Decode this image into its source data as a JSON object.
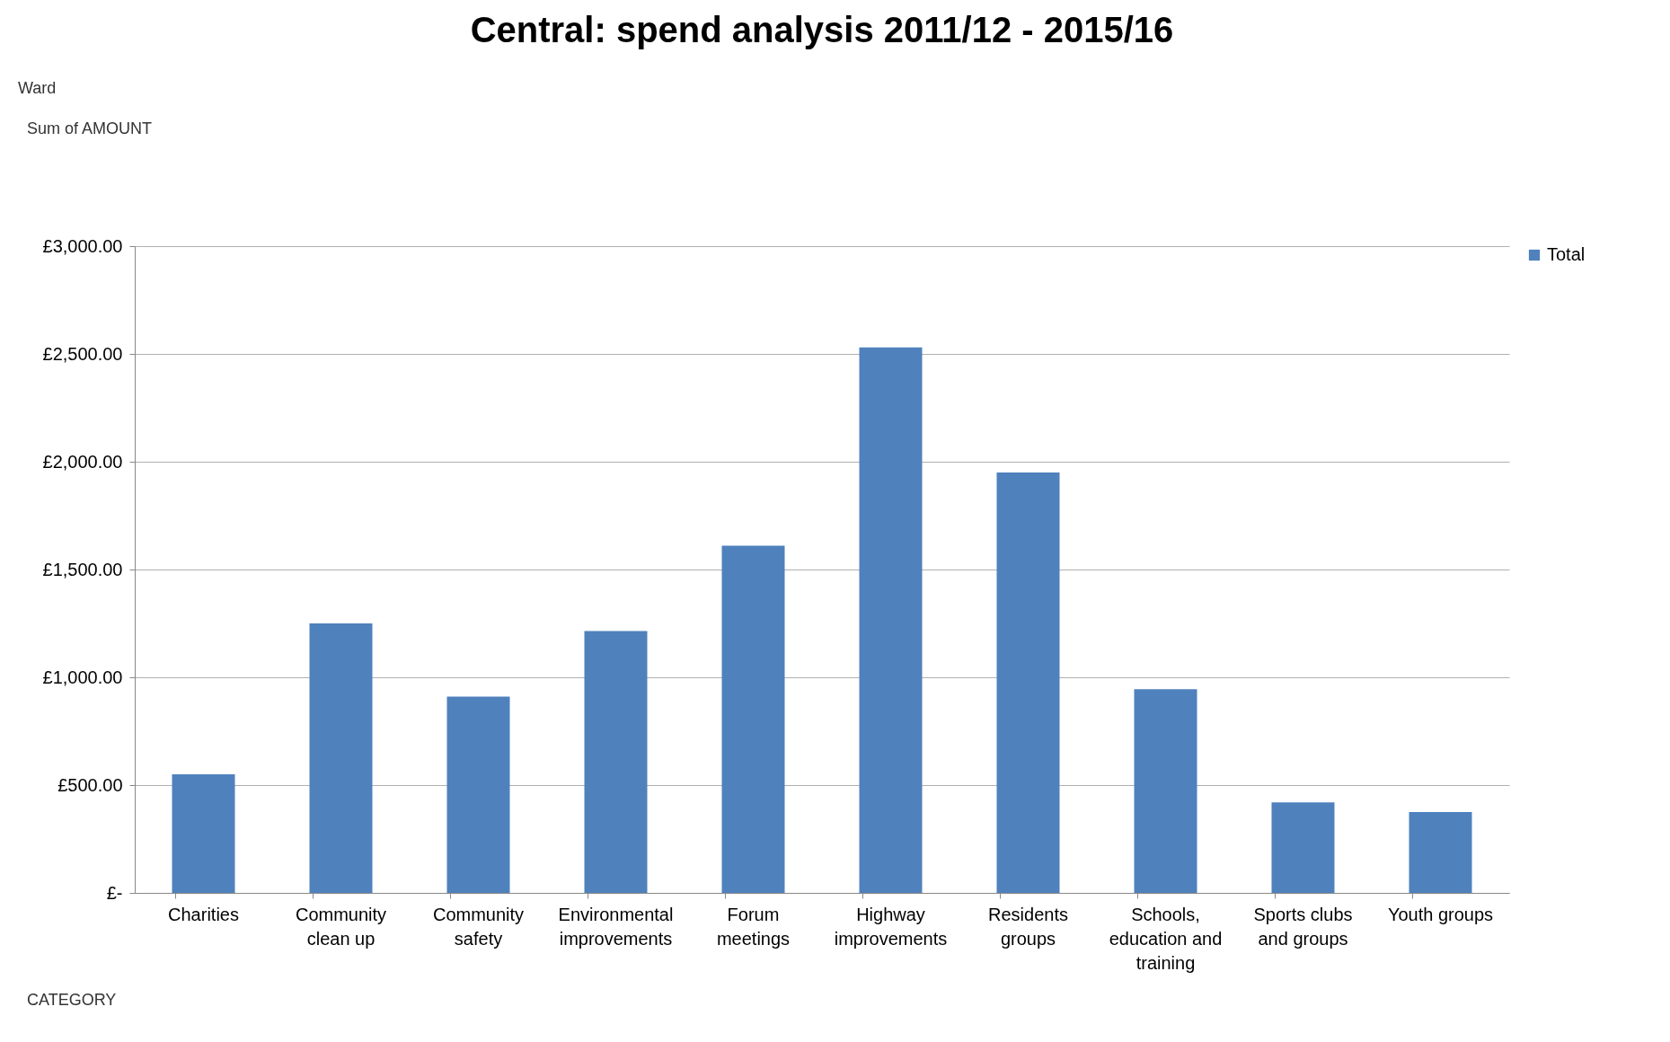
{
  "chart_data": {
    "type": "bar",
    "title": "Central: spend analysis 2011/12 - 2015/16",
    "categories": [
      "Charities",
      "Community clean up",
      "Community safety",
      "Environmental improvements",
      "Forum meetings",
      "Highway improvements",
      "Residents groups",
      "Schools, education and training",
      "Sports clubs and groups",
      "Youth groups"
    ],
    "series": [
      {
        "name": "Total",
        "color": "#4f81bd",
        "values": [
          550,
          1250,
          910,
          1215,
          1610,
          2530,
          1950,
          945,
          420,
          375
        ]
      }
    ],
    "ylim": [
      0,
      3000
    ],
    "yticks": [
      {
        "value": 0,
        "label": "£-"
      },
      {
        "value": 500,
        "label": "£500.00"
      },
      {
        "value": 1000,
        "label": "£1,000.00"
      },
      {
        "value": 1500,
        "label": "£1,500.00"
      },
      {
        "value": 2000,
        "label": "£2,000.00"
      },
      {
        "value": 2500,
        "label": "£2,500.00"
      },
      {
        "value": 3000,
        "label": "£3,000.00"
      }
    ],
    "grid": "y",
    "legend": "right",
    "annotations": [
      "Ward",
      "Sum of AMOUNT",
      "CATEGORY"
    ]
  }
}
